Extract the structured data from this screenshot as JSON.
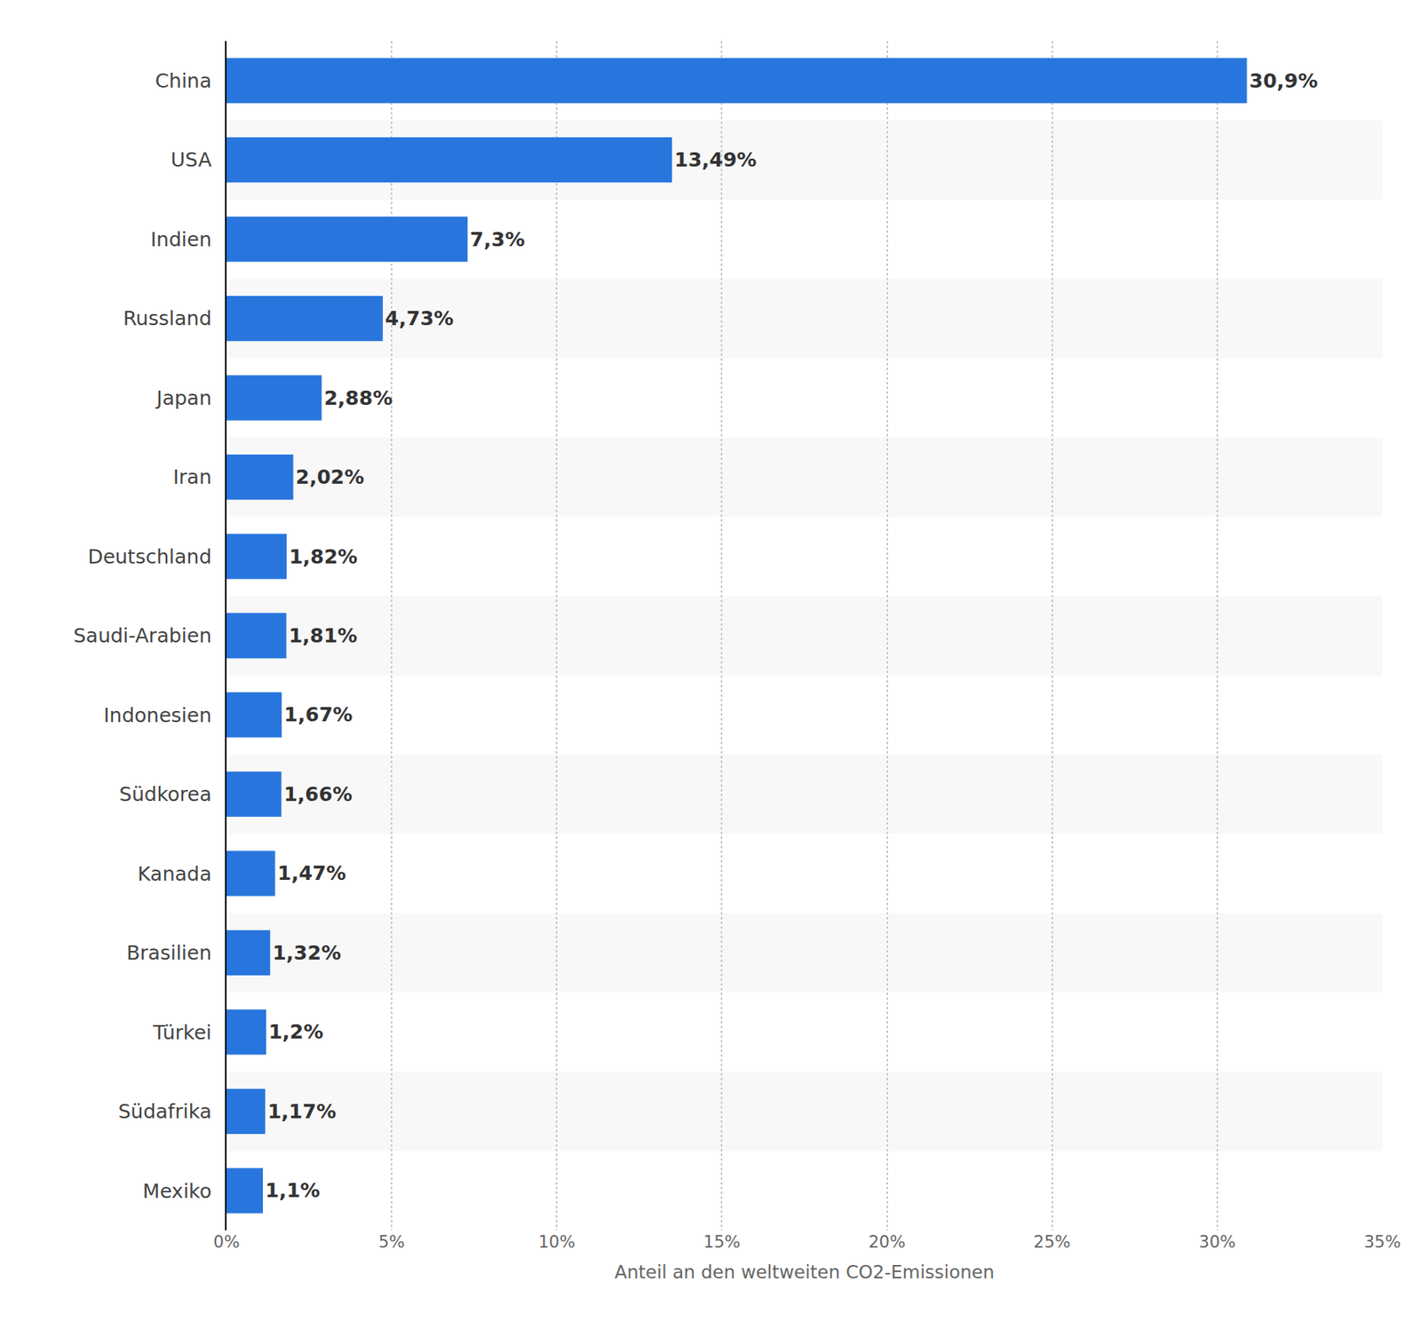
{
  "chart_data": {
    "type": "bar",
    "orientation": "horizontal",
    "categories": [
      "China",
      "USA",
      "Indien",
      "Russland",
      "Japan",
      "Iran",
      "Deutschland",
      "Saudi-Arabien",
      "Indonesien",
      "Südkorea",
      "Kanada",
      "Brasilien",
      "Türkei",
      "Südafrika",
      "Mexiko"
    ],
    "values": [
      30.9,
      13.49,
      7.3,
      4.73,
      2.88,
      2.02,
      1.82,
      1.81,
      1.67,
      1.66,
      1.47,
      1.32,
      1.2,
      1.17,
      1.1
    ],
    "value_labels": [
      "30,9%",
      "13,49%",
      "7,3%",
      "4,73%",
      "2,88%",
      "2,02%",
      "1,82%",
      "1,81%",
      "1,67%",
      "1,66%",
      "1,47%",
      "1,32%",
      "1,2%",
      "1,17%",
      "1,1%"
    ],
    "data_labels": true,
    "color": "#2876dd",
    "x_label": "Anteil an den weltweiten CO2-Emissionen",
    "xlim": [
      0,
      35
    ],
    "xticks": [
      {
        "value": 0,
        "label": "0%"
      },
      {
        "value": 5,
        "label": "5%"
      },
      {
        "value": 10,
        "label": "10%"
      },
      {
        "value": 15,
        "label": "15%"
      },
      {
        "value": 20,
        "label": "20%"
      },
      {
        "value": 25,
        "label": "25%"
      },
      {
        "value": 30,
        "label": "30%"
      },
      {
        "value": 35,
        "label": "35%"
      }
    ],
    "grid": true
  }
}
